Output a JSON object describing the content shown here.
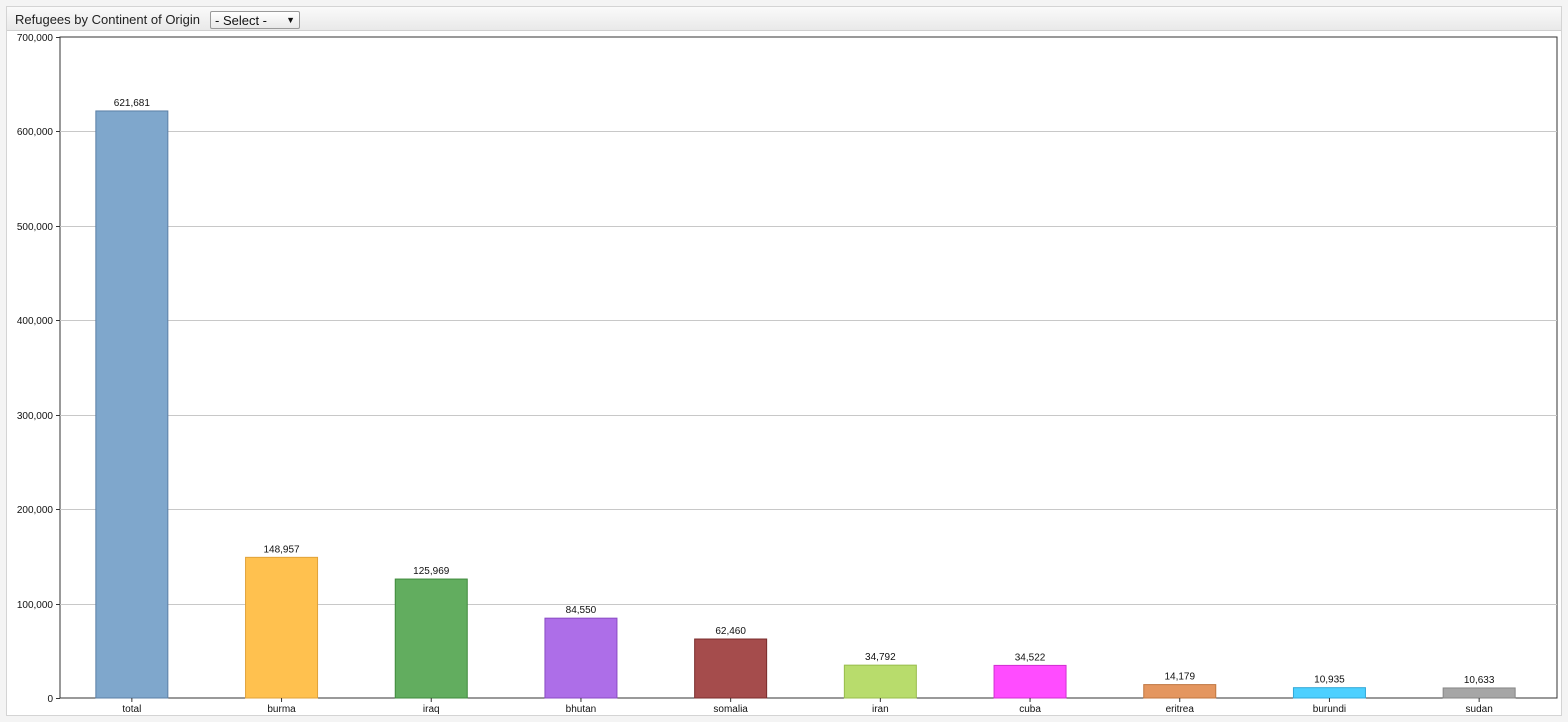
{
  "header": {
    "title": "Refugees by Continent of Origin",
    "select_label": "- Select -"
  },
  "icons": {
    "dropdown": "caret-down-icon"
  },
  "chart_data": {
    "type": "bar",
    "title": "",
    "xlabel": "",
    "ylabel": "",
    "ylim": [
      0,
      700000
    ],
    "yticks": [
      0,
      100000,
      200000,
      300000,
      400000,
      500000,
      600000,
      700000
    ],
    "ytick_labels": [
      "0",
      "100,000",
      "200,000",
      "300,000",
      "400,000",
      "500,000",
      "600,000",
      "700,000"
    ],
    "grid": true,
    "categories": [
      "total",
      "burma",
      "iraq",
      "bhutan",
      "somalia",
      "iran",
      "cuba",
      "eritrea",
      "burundi",
      "sudan"
    ],
    "values": [
      621681,
      148957,
      125969,
      84550,
      62460,
      34792,
      34522,
      14179,
      10935,
      10633
    ],
    "value_labels": [
      "621,681",
      "148,957",
      "125,969",
      "84,550",
      "62,460",
      "34,792",
      "34,522",
      "14,179",
      "10,935",
      "10,633"
    ],
    "colors": [
      "#7fa7cc",
      "#ffc14f",
      "#62ad5f",
      "#ad6ee8",
      "#a54c4c",
      "#b8dc6c",
      "#ff4cff",
      "#e4965f",
      "#4cd0ff",
      "#a6a6a6"
    ],
    "border_colors": [
      "#5b7fa6",
      "#e0a23a",
      "#3f8a3c",
      "#8a4bc4",
      "#7a2c2c",
      "#98bc4c",
      "#d030d0",
      "#c0763f",
      "#30a8d8",
      "#868686"
    ]
  }
}
